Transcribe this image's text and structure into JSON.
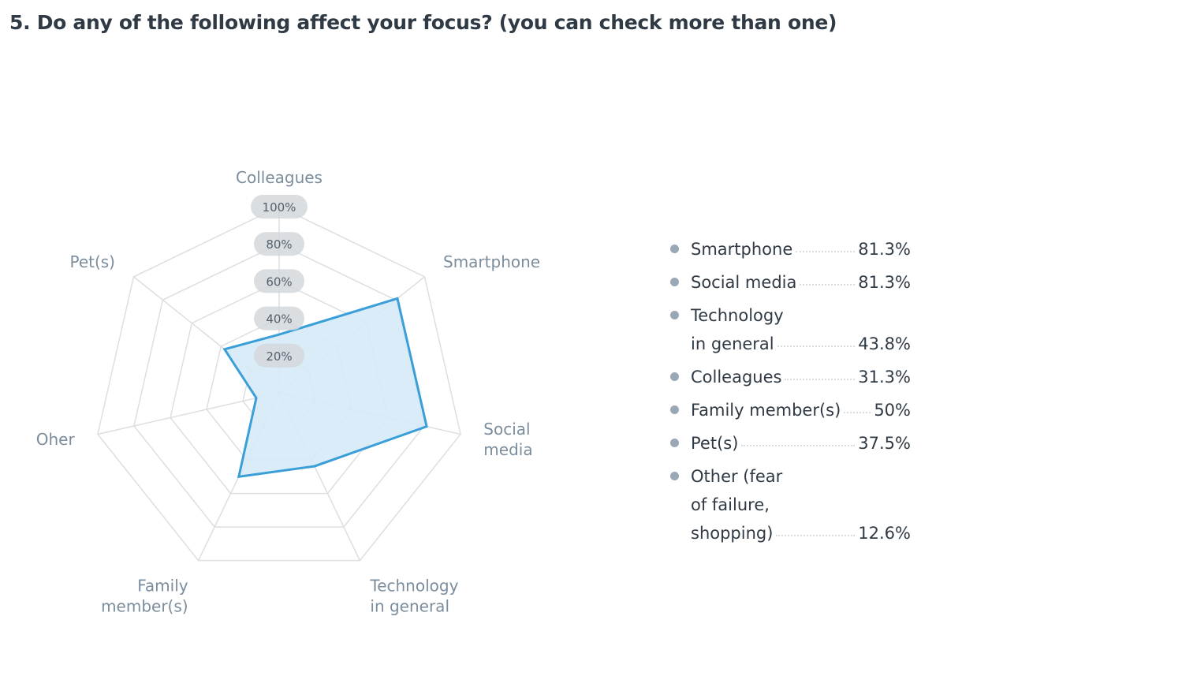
{
  "title": "5. Do any of the following affect your focus? (you can check more than one)",
  "chart_data": {
    "type": "radar",
    "axes": [
      {
        "lines": [
          "Colleagues"
        ],
        "value": 31.3
      },
      {
        "lines": [
          "Smartphone"
        ],
        "value": 81.3
      },
      {
        "lines": [
          "Social",
          "media"
        ],
        "value": 81.3
      },
      {
        "lines": [
          "Technology",
          "in general"
        ],
        "value": 43.8
      },
      {
        "lines": [
          "Family",
          "member(s)"
        ],
        "value": 50
      },
      {
        "lines": [
          "Oher"
        ],
        "value": 12.6
      },
      {
        "lines": [
          "Pet(s)"
        ],
        "value": 37.5
      }
    ],
    "ticks": [
      "20%",
      "40%",
      "60%",
      "80%",
      "100%"
    ],
    "range": [
      0,
      100
    ],
    "colors": {
      "line": "#3a9fd8",
      "fill": "#d6eaf7",
      "grid": "#dcdfe2",
      "tickBg": "#d3d8dc"
    }
  },
  "legend": [
    {
      "lines": [
        "Smartphone"
      ],
      "value": "81.3%"
    },
    {
      "lines": [
        "Social media"
      ],
      "value": "81.3%"
    },
    {
      "lines": [
        "Technology",
        "in general"
      ],
      "value": "43.8%"
    },
    {
      "lines": [
        "Colleagues"
      ],
      "value": "31.3%"
    },
    {
      "lines": [
        "Family member(s)"
      ],
      "value": "50%"
    },
    {
      "lines": [
        "Pet(s)"
      ],
      "value": "37.5%"
    },
    {
      "lines": [
        "Other (fear",
        "of failure,",
        "shopping)"
      ],
      "value": "12.6%"
    }
  ]
}
